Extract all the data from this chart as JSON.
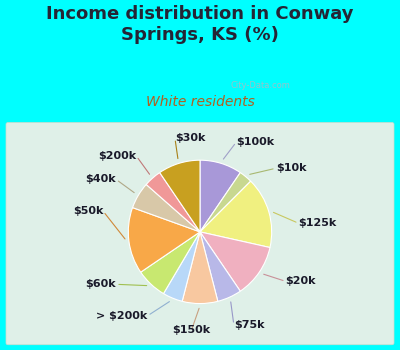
{
  "title": "Income distribution in Conway\nSprings, KS (%)",
  "subtitle": "White residents",
  "background_color": "#00ffff",
  "chart_bg": "#dff0e8",
  "slices": [
    {
      "label": "$100k",
      "value": 9.5,
      "color": "#a898d8"
    },
    {
      "label": "$10k",
      "value": 3.0,
      "color": "#c8d890"
    },
    {
      "label": "$125k",
      "value": 16.0,
      "color": "#f0f080"
    },
    {
      "label": "$20k",
      "value": 12.0,
      "color": "#f0b0c0"
    },
    {
      "label": "$75k",
      "value": 5.5,
      "color": "#b8b8e8"
    },
    {
      "label": "$150k",
      "value": 8.0,
      "color": "#f8c8a0"
    },
    {
      "> $200k": "> $200k",
      "label": "> $200k",
      "value": 4.5,
      "color": "#b8d8f8"
    },
    {
      "label": "$60k",
      "value": 7.0,
      "color": "#c8e870"
    },
    {
      "label": "$50k",
      "value": 15.0,
      "color": "#f8a848"
    },
    {
      "label": "$40k",
      "value": 6.0,
      "color": "#d8c8a8"
    },
    {
      "label": "$200k",
      "value": 4.0,
      "color": "#f09898"
    },
    {
      "label": "$30k",
      "value": 9.5,
      "color": "#c8a020"
    }
  ],
  "title_fontsize": 13,
  "subtitle_fontsize": 10,
  "label_fontsize": 8,
  "watermark": "City-Data.com"
}
